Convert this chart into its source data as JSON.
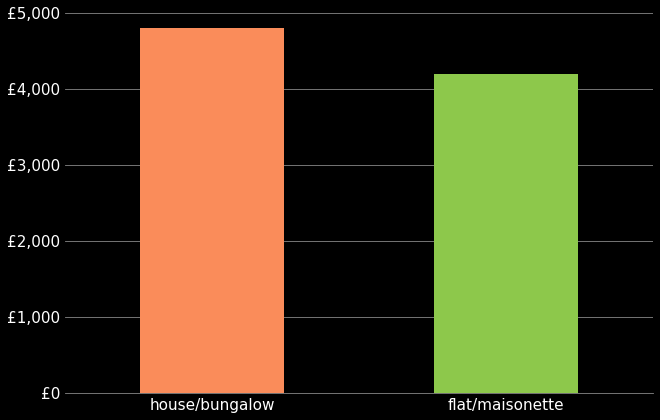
{
  "categories": [
    "house/bungalow",
    "flat/maisonette"
  ],
  "values": [
    4800,
    4200
  ],
  "bar_colors": [
    "#FA8C5A",
    "#8DC84B"
  ],
  "background_color": "#000000",
  "text_color": "#ffffff",
  "ylim": [
    0,
    5000
  ],
  "ytick_values": [
    0,
    1000,
    2000,
    3000,
    4000,
    5000
  ],
  "grid_color": "#888888",
  "bar_width": 0.35,
  "figsize": [
    6.6,
    4.2
  ],
  "dpi": 100,
  "tick_fontsize": 11,
  "xlabel_fontsize": 11
}
